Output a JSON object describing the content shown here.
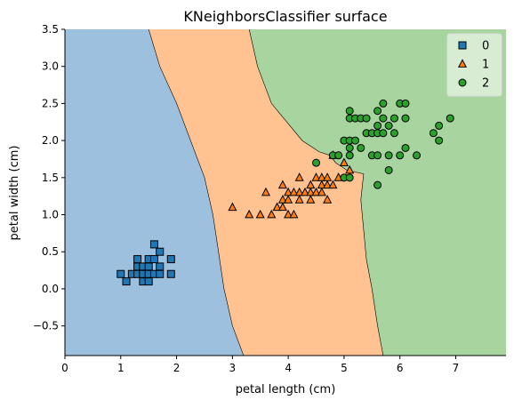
{
  "chart_data": {
    "type": "scatter",
    "title": "KNeighborsClassifier surface",
    "xlabel": "petal length (cm)",
    "ylabel": "petal width (cm)",
    "xlim": [
      0,
      7.9
    ],
    "ylim": [
      -0.9,
      3.5
    ],
    "x_ticks": [
      0,
      1,
      2,
      3,
      4,
      5,
      6,
      7
    ],
    "y_ticks": [
      -0.5,
      0.0,
      0.5,
      1.0,
      1.5,
      2.0,
      2.5,
      3.0,
      3.5
    ],
    "x_tick_labels": [
      "0",
      "1",
      "2",
      "3",
      "4",
      "5",
      "6",
      "7"
    ],
    "y_tick_labels": [
      "−0.5",
      "0.0",
      "0.5",
      "1.0",
      "1.5",
      "2.0",
      "2.5",
      "3.0",
      "3.5"
    ],
    "grid": false,
    "legend_position": "top-right",
    "regions": [
      {
        "class": "0",
        "color": "#9cc0de",
        "polygon": [
          [
            0,
            3.5
          ],
          [
            1.5,
            3.5
          ],
          [
            1.7,
            3.0
          ],
          [
            2.0,
            2.5
          ],
          [
            2.25,
            2.0
          ],
          [
            2.5,
            1.5
          ],
          [
            2.65,
            1.0
          ],
          [
            2.75,
            0.5
          ],
          [
            2.85,
            0.0
          ],
          [
            3.0,
            -0.5
          ],
          [
            3.2,
            -0.9
          ],
          [
            0,
            -0.9
          ]
        ]
      },
      {
        "class": "1",
        "color": "#ffc290",
        "polygon": [
          [
            1.5,
            3.5
          ],
          [
            3.3,
            3.5
          ],
          [
            3.45,
            3.0
          ],
          [
            3.7,
            2.5
          ],
          [
            4.25,
            2.0
          ],
          [
            4.55,
            1.85
          ],
          [
            4.75,
            1.8
          ],
          [
            4.85,
            1.7
          ],
          [
            5.05,
            1.6
          ],
          [
            5.35,
            1.55
          ],
          [
            5.3,
            1.2
          ],
          [
            5.35,
            0.8
          ],
          [
            5.4,
            0.4
          ],
          [
            5.5,
            0.0
          ],
          [
            5.6,
            -0.5
          ],
          [
            5.7,
            -0.9
          ],
          [
            3.2,
            -0.9
          ],
          [
            3.0,
            -0.5
          ],
          [
            2.85,
            0.0
          ],
          [
            2.75,
            0.5
          ],
          [
            2.65,
            1.0
          ],
          [
            2.5,
            1.5
          ],
          [
            2.25,
            2.0
          ],
          [
            2.0,
            2.5
          ],
          [
            1.7,
            3.0
          ]
        ]
      },
      {
        "class": "2",
        "color": "#a8d4a0",
        "polygon": [
          [
            3.3,
            3.5
          ],
          [
            7.9,
            3.5
          ],
          [
            7.9,
            -0.9
          ],
          [
            5.7,
            -0.9
          ],
          [
            5.6,
            -0.5
          ],
          [
            5.5,
            0.0
          ],
          [
            5.4,
            0.4
          ],
          [
            5.35,
            0.8
          ],
          [
            5.3,
            1.2
          ],
          [
            5.35,
            1.55
          ],
          [
            5.05,
            1.6
          ],
          [
            4.85,
            1.7
          ],
          [
            4.75,
            1.8
          ],
          [
            4.55,
            1.85
          ],
          [
            4.25,
            2.0
          ],
          [
            3.7,
            2.5
          ],
          [
            3.45,
            3.0
          ]
        ]
      }
    ],
    "series": [
      {
        "name": "0",
        "marker": "square",
        "color": "#1f77b4",
        "points": [
          [
            1.0,
            0.2
          ],
          [
            1.1,
            0.1
          ],
          [
            1.2,
            0.2
          ],
          [
            1.3,
            0.2
          ],
          [
            1.3,
            0.3
          ],
          [
            1.3,
            0.4
          ],
          [
            1.4,
            0.1
          ],
          [
            1.4,
            0.2
          ],
          [
            1.4,
            0.3
          ],
          [
            1.5,
            0.1
          ],
          [
            1.5,
            0.2
          ],
          [
            1.5,
            0.3
          ],
          [
            1.5,
            0.4
          ],
          [
            1.6,
            0.2
          ],
          [
            1.6,
            0.4
          ],
          [
            1.6,
            0.6
          ],
          [
            1.7,
            0.2
          ],
          [
            1.7,
            0.3
          ],
          [
            1.7,
            0.5
          ],
          [
            1.9,
            0.2
          ],
          [
            1.9,
            0.4
          ]
        ]
      },
      {
        "name": "1",
        "marker": "triangle",
        "color": "#ff7f0e",
        "points": [
          [
            3.0,
            1.1
          ],
          [
            3.3,
            1.0
          ],
          [
            3.5,
            1.0
          ],
          [
            3.6,
            1.3
          ],
          [
            3.7,
            1.0
          ],
          [
            3.8,
            1.1
          ],
          [
            3.9,
            1.1
          ],
          [
            3.9,
            1.2
          ],
          [
            3.9,
            1.4
          ],
          [
            4.0,
            1.0
          ],
          [
            4.0,
            1.2
          ],
          [
            4.0,
            1.3
          ],
          [
            4.1,
            1.0
          ],
          [
            4.1,
            1.3
          ],
          [
            4.2,
            1.2
          ],
          [
            4.2,
            1.3
          ],
          [
            4.2,
            1.5
          ],
          [
            4.3,
            1.3
          ],
          [
            4.4,
            1.2
          ],
          [
            4.4,
            1.3
          ],
          [
            4.4,
            1.4
          ],
          [
            4.5,
            1.3
          ],
          [
            4.5,
            1.5
          ],
          [
            4.6,
            1.3
          ],
          [
            4.6,
            1.4
          ],
          [
            4.6,
            1.5
          ],
          [
            4.7,
            1.2
          ],
          [
            4.7,
            1.4
          ],
          [
            4.7,
            1.5
          ],
          [
            4.8,
            1.4
          ],
          [
            4.8,
            1.8
          ],
          [
            4.9,
            1.5
          ],
          [
            5.0,
            1.7
          ],
          [
            5.1,
            1.6
          ]
        ]
      },
      {
        "name": "2",
        "marker": "circle",
        "color": "#2ca02c",
        "points": [
          [
            4.5,
            1.7
          ],
          [
            4.8,
            1.8
          ],
          [
            4.9,
            1.8
          ],
          [
            5.0,
            1.5
          ],
          [
            5.0,
            2.0
          ],
          [
            5.1,
            1.5
          ],
          [
            5.1,
            1.8
          ],
          [
            5.1,
            1.9
          ],
          [
            5.1,
            2.0
          ],
          [
            5.1,
            2.3
          ],
          [
            5.1,
            2.4
          ],
          [
            5.2,
            2.0
          ],
          [
            5.2,
            2.3
          ],
          [
            5.3,
            1.9
          ],
          [
            5.3,
            2.3
          ],
          [
            5.4,
            2.1
          ],
          [
            5.4,
            2.3
          ],
          [
            5.5,
            1.8
          ],
          [
            5.5,
            2.1
          ],
          [
            5.6,
            1.4
          ],
          [
            5.6,
            1.8
          ],
          [
            5.6,
            2.1
          ],
          [
            5.6,
            2.2
          ],
          [
            5.6,
            2.4
          ],
          [
            5.7,
            2.1
          ],
          [
            5.7,
            2.3
          ],
          [
            5.7,
            2.5
          ],
          [
            5.8,
            1.6
          ],
          [
            5.8,
            1.8
          ],
          [
            5.8,
            2.2
          ],
          [
            5.9,
            2.1
          ],
          [
            5.9,
            2.3
          ],
          [
            6.0,
            1.8
          ],
          [
            6.0,
            2.5
          ],
          [
            6.1,
            1.9
          ],
          [
            6.1,
            2.3
          ],
          [
            6.1,
            2.5
          ],
          [
            6.3,
            1.8
          ],
          [
            6.6,
            2.1
          ],
          [
            6.7,
            2.0
          ],
          [
            6.7,
            2.2
          ],
          [
            6.9,
            2.3
          ]
        ]
      }
    ]
  }
}
